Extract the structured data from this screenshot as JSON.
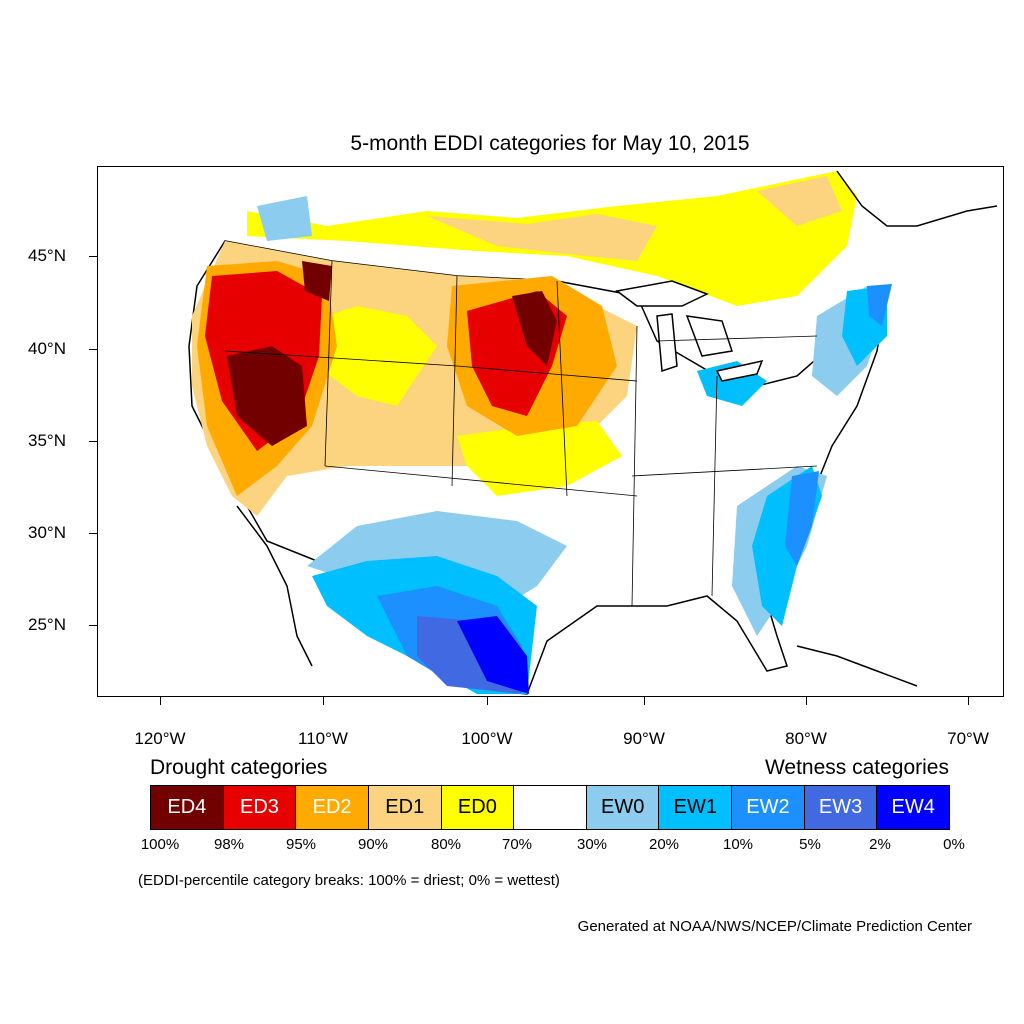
{
  "title": "5-month EDDI categories for May 10, 2015",
  "lat_labels": [
    "45°N",
    "40°N",
    "35°N",
    "30°N",
    "25°N"
  ],
  "lon_labels": [
    "120°W",
    "110°W",
    "100°W",
    "90°W",
    "80°W",
    "70°W"
  ],
  "legend": {
    "drought_heading": "Drought categories",
    "wetness_heading": "Wetness categories",
    "categories": [
      {
        "label": "ED4",
        "color": "#730000",
        "text_color": "#ffffff"
      },
      {
        "label": "ED3",
        "color": "#e60000",
        "text_color": "#ffffff"
      },
      {
        "label": "ED2",
        "color": "#ffaa00",
        "text_color": "#ffffff"
      },
      {
        "label": "ED1",
        "color": "#fcd37f",
        "text_color": "#000000"
      },
      {
        "label": "ED0",
        "color": "#ffff00",
        "text_color": "#000000"
      },
      {
        "label": "",
        "color": "#ffffff",
        "text_color": "#000000"
      },
      {
        "label": "EW0",
        "color": "#8ccdef",
        "text_color": "#000000"
      },
      {
        "label": "EW1",
        "color": "#00bfff",
        "text_color": "#000000"
      },
      {
        "label": "EW2",
        "color": "#1d90ff",
        "text_color": "#ffffff"
      },
      {
        "label": "EW3",
        "color": "#4169e1",
        "text_color": "#ffffff"
      },
      {
        "label": "EW4",
        "color": "#0000ff",
        "text_color": "#ffffff"
      }
    ],
    "percent_breaks": [
      "100%",
      "98%",
      "95%",
      "90%",
      "80%",
      "70%",
      "30%",
      "20%",
      "10%",
      "5%",
      "2%",
      "0%"
    ]
  },
  "note": "(EDDI-percentile category breaks: 100% = driest; 0% = wettest)",
  "credit": "Generated at NOAA/NWS/NCEP/Climate Prediction Center"
}
